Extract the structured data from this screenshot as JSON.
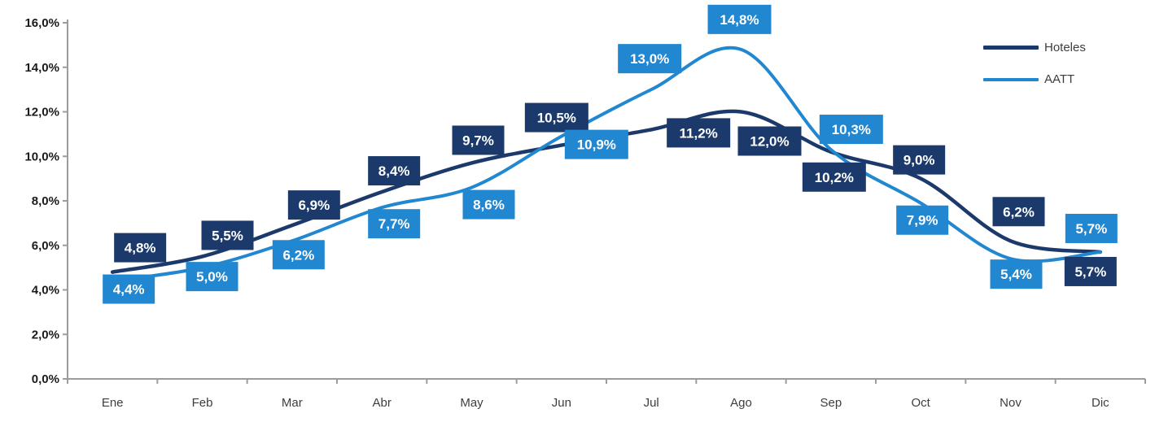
{
  "chart_data": {
    "type": "line",
    "title": "",
    "xlabel": "",
    "ylabel": "",
    "categories": [
      "Ene",
      "Feb",
      "Mar",
      "Abr",
      "May",
      "Jun",
      "Jul",
      "Ago",
      "Sep",
      "Oct",
      "Nov",
      "Dic"
    ],
    "series": [
      {
        "name": "Hoteles",
        "color": "#1B3A6B",
        "values": [
          4.8,
          5.5,
          6.9,
          8.4,
          9.7,
          10.5,
          11.2,
          12.0,
          10.2,
          9.0,
          6.2,
          5.7
        ],
        "labels": [
          "4,8%",
          "5,5%",
          "6,9%",
          "8,4%",
          "9,7%",
          "10,5%",
          "11,2%",
          "12,0%",
          "10,2%",
          "9,0%",
          "6,2%",
          "5,7%"
        ]
      },
      {
        "name": "AATT",
        "color": "#2187D1",
        "values": [
          4.4,
          5.0,
          6.2,
          7.7,
          8.6,
          10.9,
          13.0,
          14.8,
          10.3,
          7.9,
          5.4,
          5.7
        ],
        "labels": [
          "4,4%",
          "5,0%",
          "6,2%",
          "7,7%",
          "8,6%",
          "10,9%",
          "13,0%",
          "14,8%",
          "10,3%",
          "7,9%",
          "5,4%",
          "5,7%"
        ]
      }
    ],
    "y_ticks": [
      "0,0%",
      "2,0%",
      "4,0%",
      "6,0%",
      "8,0%",
      "10,0%",
      "12,0%",
      "14,0%",
      "16,0%"
    ],
    "ylim": [
      0,
      16
    ],
    "y_step": 2,
    "grid": false,
    "legend_position": "top-right",
    "axis_color": "#9C9C9C",
    "tick_label_color": "#1a1a1a",
    "month_label_color": "#3d3d3d",
    "data_label_text_color": "#ffffff"
  }
}
